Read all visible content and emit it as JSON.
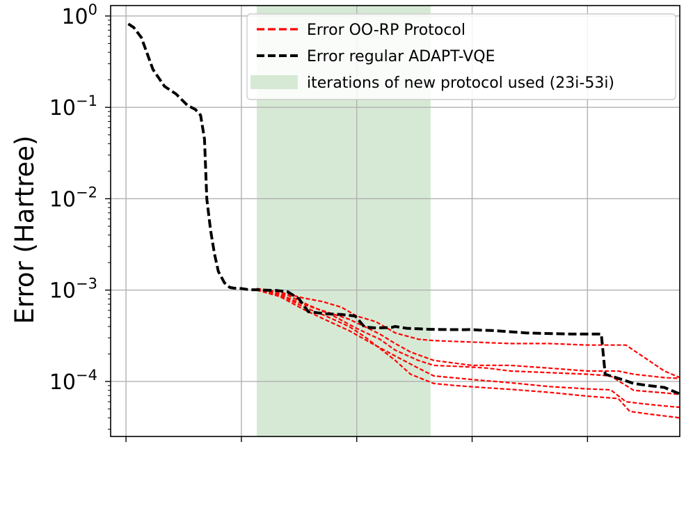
{
  "chart_data": {
    "type": "line",
    "title": "",
    "xlabel": "",
    "ylabel": "Error (Hartree)",
    "yscale": "log",
    "ylim": [
      2.5e-05,
      1.3
    ],
    "xlim": [
      -2,
      72
    ],
    "grid": true,
    "x_ticks": [
      0,
      15,
      30,
      45,
      60,
      75
    ],
    "y_ticks": [
      {
        "value": 1,
        "base": "10",
        "exp": "0"
      },
      {
        "value": 0.1,
        "base": "10",
        "exp": "−1"
      },
      {
        "value": 0.01,
        "base": "10",
        "exp": "−2"
      },
      {
        "value": 0.001,
        "base": "10",
        "exp": "−3"
      },
      {
        "value": 0.0001,
        "base": "10",
        "exp": "−4"
      }
    ],
    "shaded_region": {
      "x_start": 17,
      "x_end": 39.6,
      "color": "#d6e9d5",
      "label": "iterations of new protocol used (23i-53i)"
    },
    "legend": {
      "position": "upper-right",
      "entries": [
        {
          "label": "Error OO-RP Protocol",
          "color": "#ff0000",
          "style": "dashed"
        },
        {
          "label": "Error regular ADAPT-VQE",
          "color": "#000000",
          "style": "dashed"
        },
        {
          "label": "iterations of new protocol used (23i-53i)",
          "color": "#d6e9d5",
          "style": "patch"
        }
      ]
    },
    "series": [
      {
        "name": "Error regular ADAPT-VQE",
        "color": "#000000",
        "width": 4,
        "x": [
          0.3,
          1,
          2,
          3.5,
          5,
          6.5,
          8,
          9,
          9.7,
          10.2,
          10.5,
          11,
          11.5,
          12,
          12.8,
          13.5,
          14,
          15,
          16,
          17,
          18,
          19.5,
          21,
          22.5,
          23.7,
          24.5,
          26,
          28,
          29.8,
          31,
          32.5,
          34.5,
          35,
          36.5,
          38,
          39.6,
          41.5,
          44,
          44.8,
          46,
          48,
          50,
          52,
          54,
          56,
          58,
          60,
          61.8,
          62.3,
          63,
          64.5,
          66,
          68,
          70,
          72
        ],
        "y": [
          0.82,
          0.75,
          0.58,
          0.26,
          0.17,
          0.14,
          0.105,
          0.095,
          0.082,
          0.045,
          0.01,
          0.0045,
          0.0025,
          0.0016,
          0.0012,
          0.00107,
          0.00105,
          0.00104,
          0.00101,
          0.00101,
          0.001,
          0.00099,
          0.00096,
          0.0008,
          0.00058,
          0.00057,
          0.00055,
          0.00054,
          0.00052,
          0.000395,
          0.000385,
          0.00039,
          0.0004,
          0.000382,
          0.000377,
          0.000372,
          0.00037,
          0.000369,
          0.00037,
          0.000365,
          0.00036,
          0.00035,
          0.00034,
          0.000336,
          0.000333,
          0.00033,
          0.00033,
          0.00033,
          0.00012,
          0.000115,
          0.000105,
          9.5e-05,
          9e-05,
          8.6e-05,
          7.3e-05
        ]
      },
      {
        "name": "",
        "color": "#ff0000",
        "width": 2.2,
        "x": [
          17,
          20,
          23,
          25.5,
          28,
          30,
          32.5,
          35,
          38,
          40,
          45,
          50,
          55,
          60,
          65,
          70,
          75
        ],
        "y": [
          0.00104,
          0.00095,
          0.00082,
          0.00075,
          0.00065,
          0.00052,
          0.00045,
          0.00034,
          0.00029,
          0.00028,
          0.00027,
          0.00026,
          0.00026,
          0.00025,
          0.00025,
          0.00013,
          8.6e-05
        ]
      },
      {
        "name": "",
        "color": "#ff0000",
        "width": 2.2,
        "x": [
          17,
          20,
          23,
          26,
          29,
          31,
          33,
          35,
          37,
          40,
          45,
          50,
          55,
          60,
          64,
          66,
          68,
          70,
          75
        ],
        "y": [
          0.00102,
          0.0009,
          0.0007,
          0.00058,
          0.00048,
          0.0004,
          0.00033,
          0.00026,
          0.00021,
          0.00017,
          0.00015,
          0.00015,
          0.00014,
          0.00013,
          0.00013,
          0.00012,
          0.000115,
          0.00011,
          0.000105
        ]
      },
      {
        "name": "",
        "color": "#ff0000",
        "width": 2.2,
        "x": [
          17,
          21,
          24,
          27,
          30,
          33,
          35,
          38,
          40,
          44,
          47,
          50,
          55,
          60,
          63,
          66,
          70,
          75
        ],
        "y": [
          0.00101,
          0.00088,
          0.00067,
          0.00052,
          0.00038,
          0.00029,
          0.00022,
          0.00017,
          0.00015,
          0.000145,
          0.00014,
          0.00013,
          0.000125,
          0.00012,
          0.000115,
          8e-05,
          7.5e-05,
          6.8e-05
        ]
      },
      {
        "name": "",
        "color": "#ff0000",
        "width": 2.2,
        "x": [
          17,
          20,
          23,
          26,
          29,
          32,
          35,
          38,
          40,
          45,
          48,
          51,
          55,
          60,
          63,
          65,
          68,
          71,
          75
        ],
        "y": [
          0.001,
          0.00085,
          0.00062,
          0.00047,
          0.00036,
          0.00026,
          0.00019,
          0.00014,
          0.000115,
          0.000105,
          0.0001,
          9.5e-05,
          8.8e-05,
          8.3e-05,
          8.1e-05,
          6e-05,
          5.6e-05,
          5.3e-05,
          5e-05
        ]
      },
      {
        "name": "",
        "color": "#ff0000",
        "width": 2.2,
        "x": [
          17,
          19,
          21,
          23,
          26,
          29,
          31,
          33,
          35,
          37,
          40,
          43,
          47,
          50,
          55,
          60,
          64,
          65.5,
          68,
          72,
          75
        ],
        "y": [
          0.00103,
          0.00093,
          0.0008,
          0.00066,
          0.00052,
          0.0004,
          0.00031,
          0.00023,
          0.00017,
          0.00012,
          9.5e-05,
          9e-05,
          8.5e-05,
          8.2e-05,
          7.6e-05,
          6.9e-05,
          6.5e-05,
          4.7e-05,
          4.4e-05,
          4e-05,
          3.8e-05
        ]
      }
    ]
  }
}
